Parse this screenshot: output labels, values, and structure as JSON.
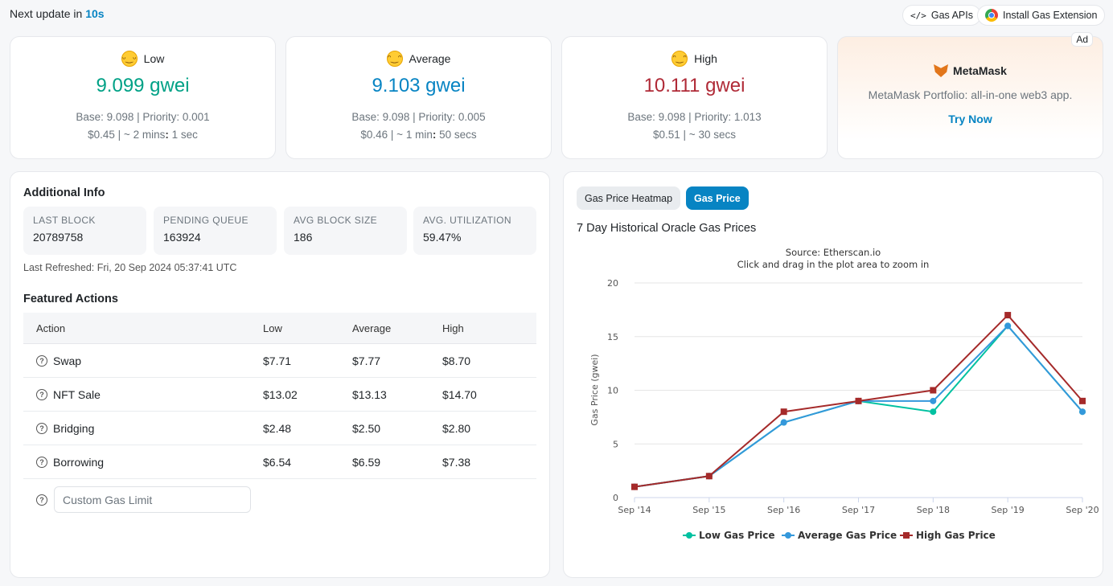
{
  "topbar": {
    "prefix": "Next update in",
    "countdown": "10s",
    "api_label": "Gas APIs",
    "api_icon": "code-icon",
    "ext_label": "Install Gas Extension",
    "ext_icon": "chrome-icon"
  },
  "gas": [
    {
      "label": "Low",
      "emoji": "grin-emoji",
      "price": "9.099 gwei",
      "color": "#00a186",
      "detail1": "Base: 9.098 | Priority: 0.001",
      "detail2_cost": "$0.45 | ~ 2 mins",
      "detail2_sep": ":",
      "detail2_time": " 1 sec"
    },
    {
      "label": "Average",
      "emoji": "smile-emoji",
      "price": "9.103 gwei",
      "color": "#0784c3",
      "detail1": "Base: 9.098 | Priority: 0.005",
      "detail2_cost": "$0.46 | ~ 1 min",
      "detail2_sep": ":",
      "detail2_time": " 50 secs"
    },
    {
      "label": "High",
      "emoji": "slight-smile-emoji",
      "price": "10.111 gwei",
      "color": "#b02a37",
      "detail1": "Base: 9.098 | Priority: 1.013",
      "detail2_cost": "$0.51 | ~ 30 secs",
      "detail2_sep": "",
      "detail2_time": ""
    }
  ],
  "ad": {
    "badge": "Ad",
    "title": "MetaMask",
    "description": "MetaMask Portfolio: all-in-one web3 app.",
    "cta": "Try Now"
  },
  "info": {
    "title": "Additional Info",
    "stats": [
      {
        "key": "LAST BLOCK",
        "value": "20789758"
      },
      {
        "key": "PENDING QUEUE",
        "value": "163924"
      },
      {
        "key": "AVG BLOCK SIZE",
        "value": "186"
      },
      {
        "key": "AVG. UTILIZATION",
        "value": "59.47%"
      }
    ],
    "refreshed": "Last Refreshed: Fri, 20 Sep 2024 05:37:41 UTC"
  },
  "featured": {
    "title": "Featured Actions",
    "headers": [
      "Action",
      "Low",
      "Average",
      "High"
    ],
    "rows": [
      {
        "action": "Swap",
        "low": "$7.71",
        "avg": "$7.77",
        "high": "$8.70"
      },
      {
        "action": "NFT Sale",
        "low": "$13.02",
        "avg": "$13.13",
        "high": "$14.70"
      },
      {
        "action": "Bridging",
        "low": "$2.48",
        "avg": "$2.50",
        "high": "$2.80"
      },
      {
        "action": "Borrowing",
        "low": "$6.54",
        "avg": "$6.59",
        "high": "$7.38"
      }
    ],
    "custom_placeholder": "Custom Gas Limit"
  },
  "chart_panel": {
    "tab_heatmap": "Gas Price Heatmap",
    "tab_price": "Gas Price",
    "title": "7 Day Historical Oracle Gas Prices"
  },
  "chart_data": {
    "type": "line",
    "subtitle_line1": "Source: Etherscan.io",
    "subtitle_line2": "Click and drag in the plot area to zoom in",
    "ylabel": "Gas Price (gwei)",
    "xlabel": "",
    "ylim": [
      0,
      20
    ],
    "yticks": [
      0,
      5,
      10,
      15,
      20
    ],
    "categories": [
      "Sep '14",
      "Sep '15",
      "Sep '16",
      "Sep '17",
      "Sep '18",
      "Sep '19",
      "Sep '20"
    ],
    "grid": true,
    "legend": "bottom",
    "series": [
      {
        "name": "Low Gas Price",
        "color": "#00c1a1",
        "marker": "circle",
        "values": [
          1,
          2,
          7,
          9,
          8,
          16,
          8
        ]
      },
      {
        "name": "Average Gas Price",
        "color": "#3498db",
        "marker": "circle",
        "values": [
          1,
          2,
          7,
          9,
          9,
          16,
          8
        ]
      },
      {
        "name": "High Gas Price",
        "color": "#a52a2a",
        "marker": "square",
        "values": [
          1,
          2,
          8,
          9,
          10,
          17,
          9
        ]
      }
    ]
  }
}
